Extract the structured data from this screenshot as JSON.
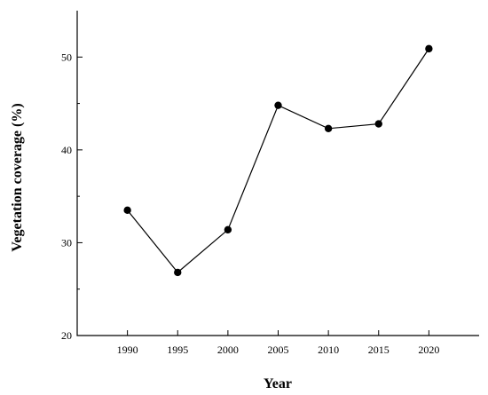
{
  "chart_data": {
    "type": "line",
    "xlabel": "Year",
    "ylabel": "Vegetation coverage (%)",
    "x": [
      1990,
      1995,
      2000,
      2005,
      2010,
      2015,
      2020
    ],
    "series": [
      {
        "values": [
          33.5,
          26.8,
          31.4,
          44.8,
          42.3,
          42.8,
          50.9
        ]
      }
    ],
    "xlim": [
      1985,
      2025
    ],
    "ylim": [
      20,
      55
    ],
    "xticks": [
      "1990",
      "1995",
      "2000",
      "2005",
      "2010",
      "2015",
      "2020"
    ],
    "yticks": [
      "20",
      "30",
      "40",
      "50"
    ],
    "grid": false,
    "marker": "filled-circle",
    "line_color": "#000000"
  }
}
